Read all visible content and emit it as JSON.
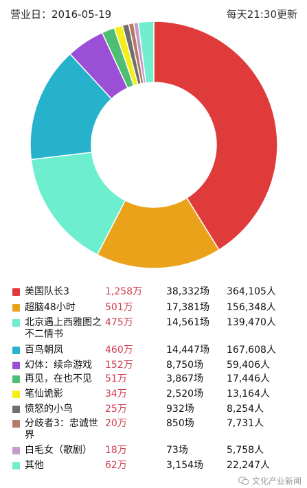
{
  "header": {
    "date_label": "营业日：2016-05-19",
    "update_label": "每天21:30更新"
  },
  "chart_data": {
    "type": "pie",
    "donut": true,
    "value_basis": "revenue",
    "slices": [
      {
        "title": "美国队长3",
        "revenue": 1258,
        "revenue_label": "1,258万",
        "sessions": "38,332场",
        "viewers": "364,105人",
        "color": "#e03b3b"
      },
      {
        "title": "超脑48小时",
        "revenue": 501,
        "revenue_label": "501万",
        "sessions": "17,381场",
        "viewers": "156,348人",
        "color": "#eaa21b"
      },
      {
        "title": "北京遇上西雅图之不二情书",
        "revenue": 475,
        "revenue_label": "475万",
        "sessions": "14,561场",
        "viewers": "139,470人",
        "color": "#6ceecf"
      },
      {
        "title": "百鸟朝凤",
        "revenue": 460,
        "revenue_label": "460万",
        "sessions": "14,447场",
        "viewers": "167,608人",
        "color": "#27b2cc"
      },
      {
        "title": "幻体：续命游戏",
        "revenue": 152,
        "revenue_label": "152万",
        "sessions": "8,750场",
        "viewers": "59,406人",
        "color": "#9b4fd6"
      },
      {
        "title": "再见，在也不见",
        "revenue": 51,
        "revenue_label": "51万",
        "sessions": "3,867场",
        "viewers": "17,446人",
        "color": "#4dbe74"
      },
      {
        "title": "笔仙诡影",
        "revenue": 34,
        "revenue_label": "34万",
        "sessions": "2,520场",
        "viewers": "13,164人",
        "color": "#f6ee1a"
      },
      {
        "title": "愤怒的小鸟",
        "revenue": 25,
        "revenue_label": "25万",
        "sessions": "932场",
        "viewers": "8,254人",
        "color": "#6f6f6f"
      },
      {
        "title": "分歧者3：忠诚世界",
        "revenue": 20,
        "revenue_label": "20万",
        "sessions": "850场",
        "viewers": "7,731人",
        "color": "#b57b66"
      },
      {
        "title": "白毛女（歌剧）",
        "revenue": 18,
        "revenue_label": "18万",
        "sessions": "73场",
        "viewers": "5,758人",
        "color": "#c79bc9"
      },
      {
        "title": "其他",
        "revenue": 62,
        "revenue_label": "62万",
        "sessions": "3,154场",
        "viewers": "22,247人",
        "color": "#72eecf"
      }
    ]
  },
  "watermark": {
    "text": "文化产业新闻",
    "icon": "wechat-icon"
  }
}
